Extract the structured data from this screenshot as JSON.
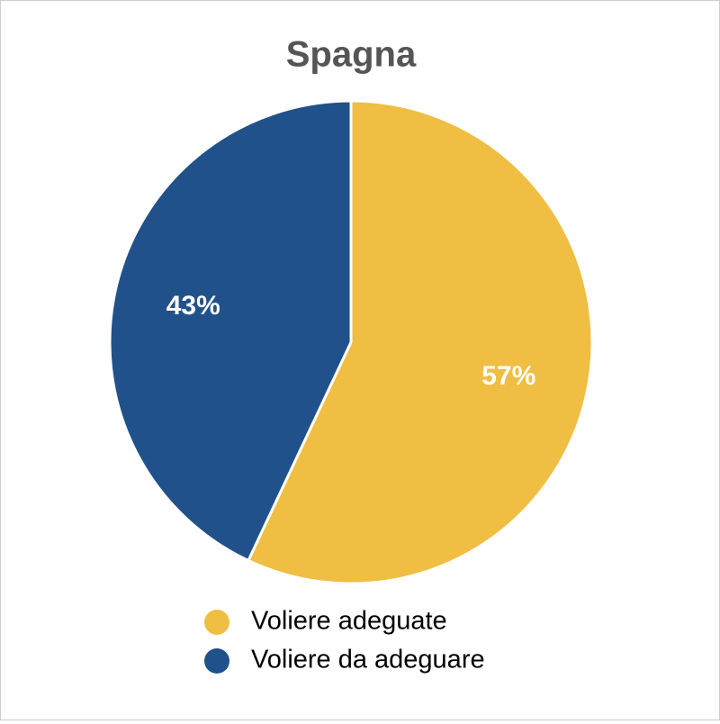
{
  "chart_data": {
    "type": "pie",
    "title": "Spagna",
    "categories": [
      "Voliere adeguate",
      "Voliere da adeguare"
    ],
    "values": [
      57,
      43
    ],
    "value_labels": [
      "57%",
      "43%"
    ],
    "colors": [
      "#efbe42",
      "#21518a"
    ],
    "legend": "bottom"
  }
}
